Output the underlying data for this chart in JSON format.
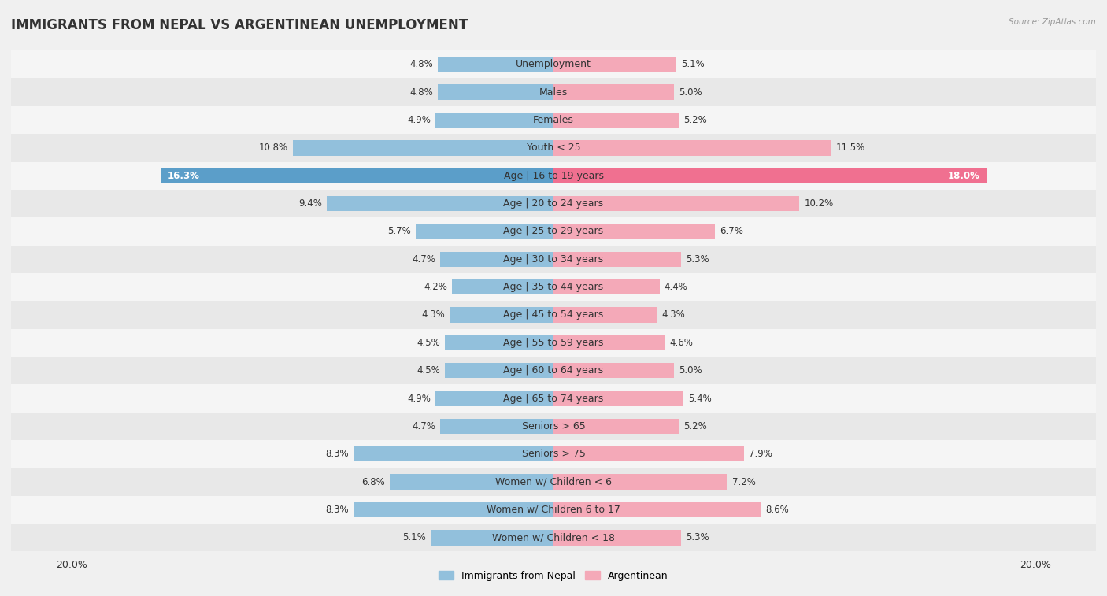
{
  "title": "IMMIGRANTS FROM NEPAL VS ARGENTINEAN UNEMPLOYMENT",
  "source": "Source: ZipAtlas.com",
  "categories": [
    "Unemployment",
    "Males",
    "Females",
    "Youth < 25",
    "Age | 16 to 19 years",
    "Age | 20 to 24 years",
    "Age | 25 to 29 years",
    "Age | 30 to 34 years",
    "Age | 35 to 44 years",
    "Age | 45 to 54 years",
    "Age | 55 to 59 years",
    "Age | 60 to 64 years",
    "Age | 65 to 74 years",
    "Seniors > 65",
    "Seniors > 75",
    "Women w/ Children < 6",
    "Women w/ Children 6 to 17",
    "Women w/ Children < 18"
  ],
  "nepal_values": [
    4.8,
    4.8,
    4.9,
    10.8,
    16.3,
    9.4,
    5.7,
    4.7,
    4.2,
    4.3,
    4.5,
    4.5,
    4.9,
    4.7,
    8.3,
    6.8,
    8.3,
    5.1
  ],
  "argentina_values": [
    5.1,
    5.0,
    5.2,
    11.5,
    18.0,
    10.2,
    6.7,
    5.3,
    4.4,
    4.3,
    4.6,
    5.0,
    5.4,
    5.2,
    7.9,
    7.2,
    8.6,
    5.3
  ],
  "nepal_color": "#92c0dc",
  "argentina_color": "#f4a9b8",
  "nepal_highlight_color": "#5b9ec9",
  "argentina_highlight_color": "#f07090",
  "row_color_even": "#f5f5f5",
  "row_color_odd": "#e8e8e8",
  "background_color": "#f0f0f0",
  "max_value": 20.0,
  "highlight_row": 4,
  "nepal_label": "Immigrants from Nepal",
  "argentina_label": "Argentinean",
  "title_fontsize": 12,
  "label_fontsize": 9,
  "value_fontsize": 8.5
}
